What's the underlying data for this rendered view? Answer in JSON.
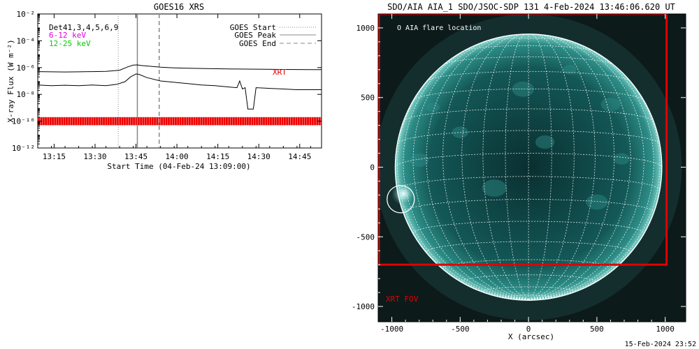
{
  "colors": {
    "xrt": "#dd0000",
    "legend_6_12": "#dd00dd",
    "legend_12_25": "#00cc00",
    "sun_disk": "#0f4a4a",
    "sun_limb": "#8cd6d0",
    "fov_box": "#e00000"
  },
  "chart_data": [
    {
      "type": "line",
      "title": "GOES16 XRS",
      "xlabel": "Start Time (04-Feb-24 13:09:00)",
      "ylabel": "X-ray Flux (W m⁻²)",
      "xlim_minutes_after_1309": [
        0,
        104
      ],
      "ylim_log10": [
        -12,
        -2
      ],
      "y_scale": "log",
      "x_tick_labels": [
        "13:15",
        "13:30",
        "13:45",
        "14:00",
        "14:15",
        "14:30",
        "14:45"
      ],
      "x_tick_minutes": [
        6,
        21,
        36,
        51,
        66,
        81,
        96
      ],
      "y_tick_labels": [
        "10⁻¹²",
        "10⁻¹⁰",
        "10⁻⁸",
        "10⁻⁶",
        "10⁻⁴",
        "10⁻²"
      ],
      "y_tick_exponents": [
        -12,
        -10,
        -8,
        -6,
        -4,
        -2
      ],
      "legend_top_left": [
        "Det41,3,4,5,6,9",
        "6-12 keV",
        "12-25 keV"
      ],
      "legend_top_right": [
        "GOES Start",
        "GOES Peak",
        "GOES End"
      ],
      "annotation": "XRT",
      "markers": {
        "goes_start": 29.5,
        "goes_peak": 36.5,
        "goes_end": 44.5
      },
      "series": [
        {
          "name": "12-25 keV",
          "x": [
            0,
            5,
            10,
            15,
            20,
            25,
            30,
            33,
            35,
            36.5,
            38,
            41,
            45,
            50,
            55,
            60,
            70,
            80,
            90,
            100,
            104
          ],
          "log10_flux": [
            -6.3,
            -6.32,
            -6.33,
            -6.32,
            -6.3,
            -6.28,
            -6.2,
            -5.95,
            -5.82,
            -5.8,
            -5.85,
            -5.9,
            -5.97,
            -6.02,
            -6.05,
            -6.07,
            -6.1,
            -6.12,
            -6.14,
            -6.15,
            -6.15
          ]
        },
        {
          "name": "6-12 keV",
          "x": [
            0,
            5,
            10,
            15,
            20,
            25,
            29,
            32,
            34,
            36,
            37,
            40,
            45,
            50,
            55,
            60,
            65,
            70,
            73,
            74,
            75,
            76,
            77,
            79,
            80,
            85,
            90,
            95,
            100,
            104
          ],
          "log10_flux": [
            -7.3,
            -7.35,
            -7.32,
            -7.35,
            -7.3,
            -7.35,
            -7.25,
            -7.05,
            -6.7,
            -6.48,
            -6.5,
            -6.75,
            -7.0,
            -7.1,
            -7.2,
            -7.3,
            -7.35,
            -7.45,
            -7.5,
            -7.0,
            -7.6,
            -7.5,
            -9.1,
            -9.1,
            -7.5,
            -7.55,
            -7.6,
            -7.65,
            -7.65,
            -7.65
          ]
        }
      ],
      "xrt_observation_band": {
        "from_minute": 0,
        "to_minute": 104,
        "log10_flux_range": [
          -10.3,
          -9.7
        ]
      }
    },
    {
      "type": "scatter",
      "title": "SDO/AIA AIA_1 SDO/JSOC-SDP 131  4-Feb-2024 13:46:06.620 UT",
      "xlabel": "X (arcsec)",
      "ylabel": "",
      "xlim": [
        -1100,
        1150
      ],
      "ylim": [
        -1110,
        1100
      ],
      "x_tick_labels": [
        "-1000",
        "-500",
        "0",
        "500",
        "1000"
      ],
      "x_tick_values": [
        -1000,
        -500,
        0,
        500,
        1000
      ],
      "y_tick_labels": [
        "-1000",
        "-500",
        "0",
        "500",
        "1000"
      ],
      "y_tick_values": [
        -1000,
        -500,
        0,
        500,
        1000
      ],
      "solar_radius_arcsec": 975,
      "grid_spacing_deg": 10,
      "flare_location_label": "AIA flare location",
      "flare_location": {
        "x": -935,
        "y": -230,
        "radius": 100
      },
      "xrt_fov_label": "XRT FOV",
      "xrt_fov": {
        "x_min": -1095,
        "x_max": 1010,
        "y_min": -700,
        "y_max": 1100
      }
    }
  ],
  "footer": {
    "timestamp": "15-Feb-2024 23:52"
  }
}
